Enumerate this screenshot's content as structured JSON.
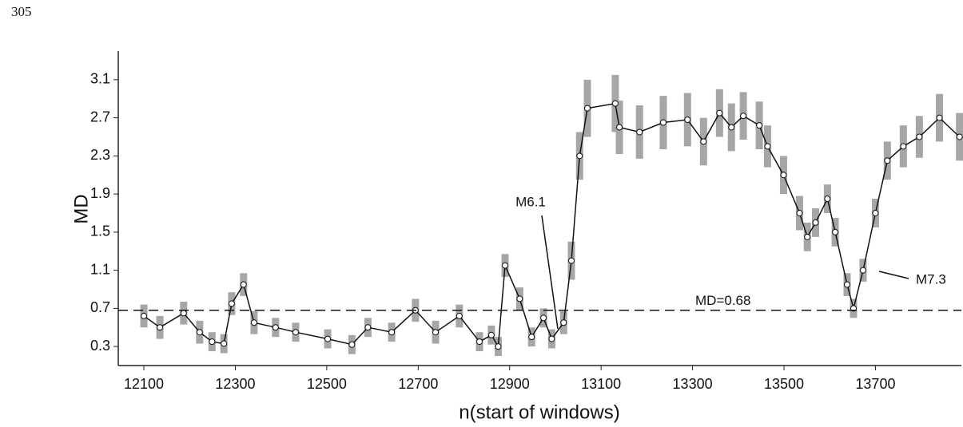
{
  "page_number": "305",
  "chart_data": {
    "type": "line",
    "xlabel": "n(start of windows)",
    "ylabel": "MD",
    "color": "#111111",
    "error_color": "#a6a6a6",
    "x": [
      12100,
      12135,
      12187,
      12222,
      12249,
      12275,
      12292,
      12318,
      12341,
      12388,
      12432,
      12502,
      12555,
      12590,
      12642,
      12694,
      12738,
      12790,
      12834,
      12860,
      12875,
      12890,
      12922,
      12948,
      12974,
      12992,
      13018,
      13035,
      13053,
      13070,
      13131,
      13140,
      13184,
      13236,
      13289,
      13324,
      13359,
      13385,
      13411,
      13446,
      13464,
      13499,
      13534,
      13551,
      13569,
      13595,
      13612,
      13638,
      13652,
      13673,
      13700,
      13726,
      13761,
      13796,
      13840,
      13884
    ],
    "values": [
      0.62,
      0.5,
      0.65,
      0.45,
      0.35,
      0.33,
      0.75,
      0.95,
      0.55,
      0.5,
      0.45,
      0.38,
      0.32,
      0.5,
      0.45,
      0.68,
      0.45,
      0.62,
      0.35,
      0.42,
      0.3,
      1.15,
      0.8,
      0.4,
      0.6,
      0.38,
      0.55,
      1.2,
      2.3,
      2.8,
      2.85,
      2.6,
      2.55,
      2.65,
      2.68,
      2.45,
      2.75,
      2.6,
      2.72,
      2.62,
      2.4,
      2.1,
      1.7,
      1.45,
      1.6,
      1.85,
      1.5,
      0.95,
      0.7,
      1.1,
      1.7,
      2.25,
      2.4,
      2.5,
      2.7,
      2.5
    ],
    "errors": [
      0.12,
      0.12,
      0.12,
      0.12,
      0.1,
      0.1,
      0.12,
      0.12,
      0.12,
      0.1,
      0.1,
      0.1,
      0.1,
      0.1,
      0.1,
      0.12,
      0.12,
      0.12,
      0.1,
      0.1,
      0.1,
      0.12,
      0.12,
      0.1,
      0.1,
      0.1,
      0.12,
      0.2,
      0.25,
      0.3,
      0.3,
      0.28,
      0.28,
      0.28,
      0.28,
      0.25,
      0.25,
      0.25,
      0.25,
      0.25,
      0.22,
      0.2,
      0.18,
      0.15,
      0.15,
      0.15,
      0.15,
      0.12,
      0.1,
      0.12,
      0.15,
      0.2,
      0.22,
      0.22,
      0.25,
      0.25
    ],
    "xlim": [
      12044,
      13888
    ],
    "ylim": [
      0.1,
      3.4
    ],
    "xticks": [
      12100,
      12300,
      12500,
      12700,
      12900,
      13100,
      13300,
      13500,
      13700
    ],
    "yticks": [
      0.3,
      0.7,
      1.1,
      1.5,
      1.9,
      2.3,
      2.7,
      3.1
    ],
    "reference_line": {
      "value": 0.68,
      "label": "MD=0.68"
    },
    "annotations": [
      {
        "text": "M6.1"
      },
      {
        "text": "M7.3"
      }
    ]
  }
}
